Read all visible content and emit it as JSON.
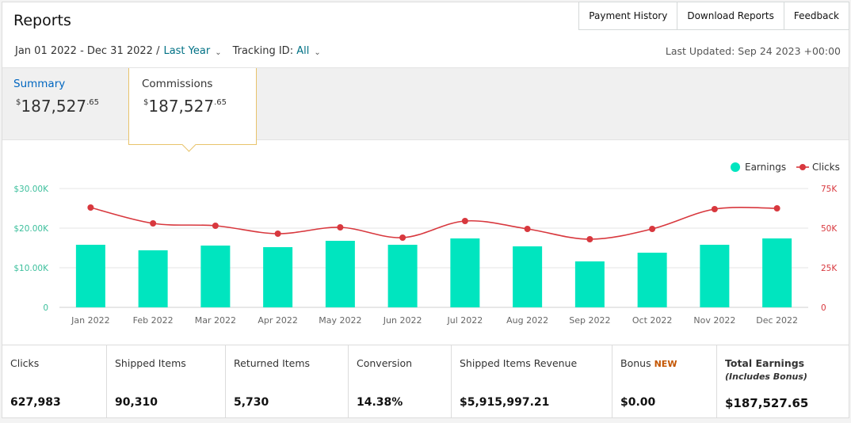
{
  "header": {
    "title": "Reports",
    "buttons": [
      "Payment History",
      "Download Reports",
      "Feedback"
    ]
  },
  "filters": {
    "date_range": "Jan 01 2022 - Dec 31 2022 /",
    "period": "Last Year",
    "tracking_label": "Tracking ID:",
    "tracking_value": "All"
  },
  "last_updated": "Last Updated: Sep 24 2023 +00:00",
  "summary_tab": {
    "label": "Summary",
    "currency": "$",
    "whole": "187,527",
    "cents": ".65"
  },
  "commissions_tab": {
    "label": "Commissions",
    "currency": "$",
    "whole": "187,527",
    "cents": ".65"
  },
  "colors": {
    "earnings": "#00e5bf",
    "clicks": "#d8383e",
    "link": "#007185",
    "summary_link": "#0066c0"
  },
  "chart_data": {
    "type": "bar",
    "categories": [
      "Jan 2022",
      "Feb 2022",
      "Mar 2022",
      "Apr 2022",
      "May 2022",
      "Jun 2022",
      "Jul 2022",
      "Aug 2022",
      "Sep 2022",
      "Oct 2022",
      "Nov 2022",
      "Dec 2022"
    ],
    "series": [
      {
        "name": "Earnings",
        "type": "bar",
        "axis": "left",
        "color": "#00e5bf",
        "values": [
          15800,
          14400,
          15600,
          15200,
          16800,
          15800,
          17400,
          15400,
          11600,
          13800,
          15800,
          17400
        ]
      },
      {
        "name": "Clicks",
        "type": "line",
        "axis": "right",
        "color": "#d8383e",
        "values": [
          63000,
          53000,
          51500,
          46500,
          50500,
          44000,
          54500,
          49500,
          43000,
          49500,
          62000,
          62500
        ]
      }
    ],
    "left_axis": {
      "ylim": [
        0,
        30000
      ],
      "ticks": [
        "0",
        "$10.00K",
        "$20.00K",
        "$30.00K"
      ]
    },
    "right_axis": {
      "ylim": [
        0,
        75000
      ],
      "ticks": [
        "0",
        "25K",
        "50K",
        "75K"
      ]
    },
    "legend": [
      "Earnings",
      "Clicks"
    ],
    "legend_position": "top-right",
    "grid": true
  },
  "metrics": [
    {
      "label": "Clicks",
      "value": "627,983"
    },
    {
      "label": "Shipped Items",
      "value": "90,310"
    },
    {
      "label": "Returned Items",
      "value": "5,730"
    },
    {
      "label": "Conversion",
      "value": "14.38%"
    },
    {
      "label": "Shipped Items Revenue",
      "value": "$5,915,997.21"
    },
    {
      "label": "Bonus",
      "badge": "NEW",
      "value": "$0.00"
    },
    {
      "label": "Total Earnings",
      "sub": "(Includes Bonus)",
      "value": "$187,527.65"
    }
  ]
}
